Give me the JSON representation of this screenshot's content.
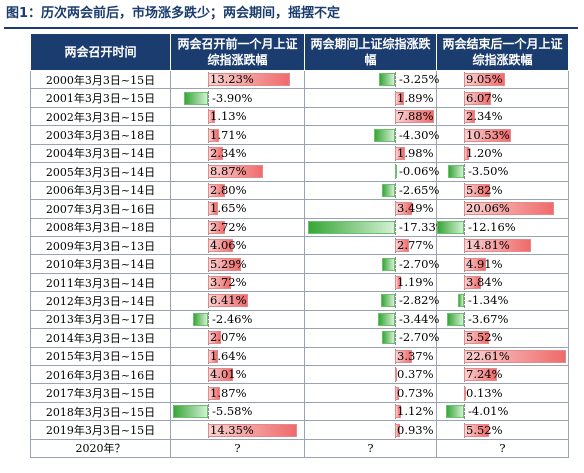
{
  "figure_title": "图1：历次两会前后，市场涨多跌少；两会期间，摇摆不定",
  "colors": {
    "header": "#1b3c6e",
    "positive": "#f06a6a",
    "negative": "#37a637"
  },
  "headers": [
    "两会召开时间",
    "两会召开前一个月上证综指涨跌幅",
    "两会期间上证综指涨跌幅",
    "两会结束后一个月上证综指涨跌幅"
  ],
  "rows": [
    {
      "period": "2000年3月3日~15日",
      "before": "13.23%",
      "during": "-3.25%",
      "after": "9.05%"
    },
    {
      "period": "2001年3月3日~15日",
      "before": "-3.90%",
      "during": "1.89%",
      "after": "6.07%"
    },
    {
      "period": "2002年3月3日~15日",
      "before": "1.13%",
      "during": "7.88%",
      "after": "2.34%"
    },
    {
      "period": "2003年3月3日~18日",
      "before": "1.71%",
      "during": "-4.30%",
      "after": "10.53%"
    },
    {
      "period": "2004年3月3日~14日",
      "before": "2.34%",
      "during": "1.98%",
      "after": "1.20%"
    },
    {
      "period": "2005年3月3日~14日",
      "before": "8.87%",
      "during": "-0.06%",
      "after": "-3.50%"
    },
    {
      "period": "2006年3月3日~14日",
      "before": "2.80%",
      "during": "-2.65%",
      "after": "5.82%"
    },
    {
      "period": "2007年3月3日~16日",
      "before": "1.65%",
      "during": "3.49%",
      "after": "20.06%"
    },
    {
      "period": "2008年3月3日~18日",
      "before": "2.72%",
      "during": "-17.33%",
      "after": "-12.16%"
    },
    {
      "period": "2009年3月3日~13日",
      "before": "4.06%",
      "during": "2.77%",
      "after": "14.81%"
    },
    {
      "period": "2010年3月3日~14日",
      "before": "5.29%",
      "during": "-2.70%",
      "after": "4.91%"
    },
    {
      "period": "2011年3月3日~14日",
      "before": "3.72%",
      "during": "1.19%",
      "after": "3.84%"
    },
    {
      "period": "2012年3月3日~14日",
      "before": "6.41%",
      "during": "-2.82%",
      "after": "-1.34%"
    },
    {
      "period": "2013年3月3日~17日",
      "before": "-2.46%",
      "during": "-3.44%",
      "after": "-3.67%"
    },
    {
      "period": "2014年3月3日~13日",
      "before": "2.07%",
      "during": "-2.70%",
      "after": "5.52%"
    },
    {
      "period": "2015年3月3日~15日",
      "before": "1.64%",
      "during": "3.37%",
      "after": "22.61%"
    },
    {
      "period": "2016年3月3日~16日",
      "before": "4.01%",
      "during": "0.37%",
      "after": "7.24%"
    },
    {
      "period": "2017年3月3日~15日",
      "before": "1.87%",
      "during": "0.73%",
      "after": "0.13%"
    },
    {
      "period": "2018年3月3日~15日",
      "before": "-5.58%",
      "during": "1.12%",
      "after": "-4.01%"
    },
    {
      "period": "2019年3月3日~15日",
      "before": "14.35%",
      "during": "0.93%",
      "after": "5.52%"
    },
    {
      "period": "2020年？",
      "before": "?",
      "during": "?",
      "after": "?"
    }
  ]
}
